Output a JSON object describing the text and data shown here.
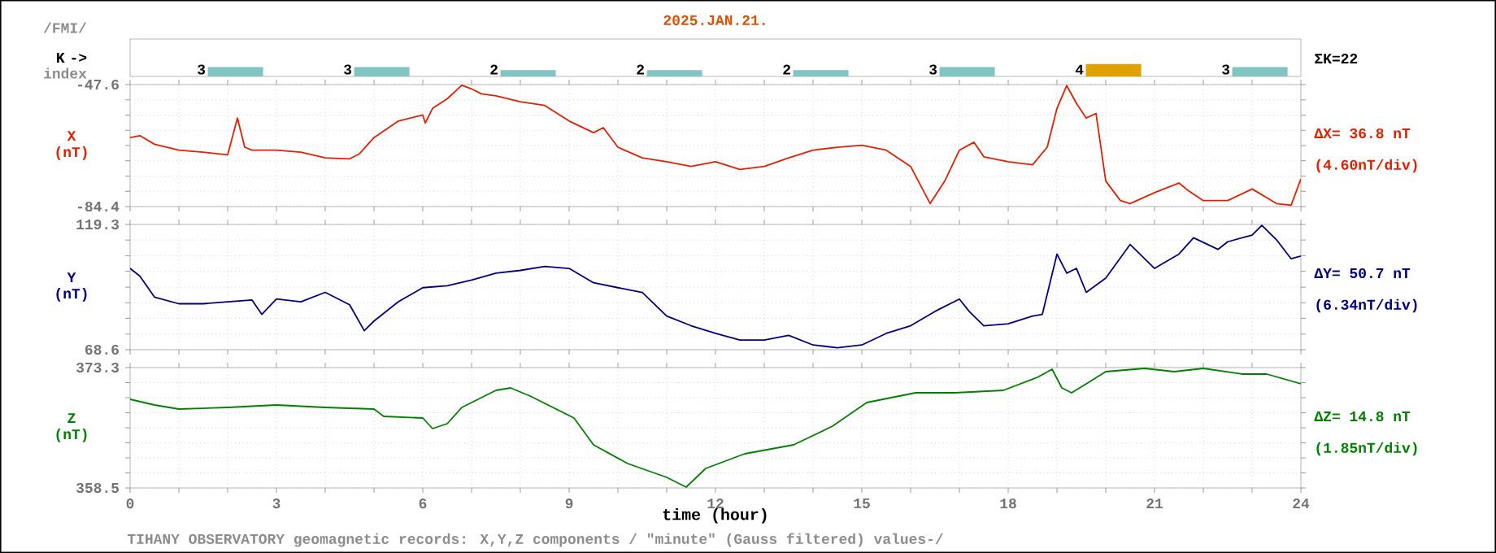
{
  "chart_data": [
    {
      "type": "bar",
      "title": "2025.JAN.21.",
      "ylabel": "K ->",
      "categories": [
        null,
        null,
        null,
        null,
        null,
        null,
        null,
        null
      ],
      "values": [
        3,
        3,
        2,
        2,
        2,
        3,
        4,
        3
      ],
      "colors": [
        "#80c4c4",
        "#80c4c4",
        "#80c4c4",
        "#80c4c4",
        "#80c4c4",
        "#80c4c4",
        "#e0a000",
        "#80c4c4"
      ],
      "data_labels": true,
      "annotations": [
        "/FMI/",
        "index",
        "ΣK=22"
      ]
    },
    {
      "type": "line",
      "ylabel": "X (nT)",
      "xlim": [
        0,
        24
      ],
      "ylim": [
        -84.4,
        -47.6
      ],
      "xticks": [
        0,
        {
          "value": 1,
          "label": null
        },
        {
          "value": 2,
          "label": null
        },
        3,
        {
          "value": 4,
          "label": null
        },
        {
          "value": 5,
          "label": null
        },
        6,
        {
          "value": 7,
          "label": null
        },
        {
          "value": 8,
          "label": null
        },
        9,
        {
          "value": 10,
          "label": null
        },
        {
          "value": 11,
          "label": null
        },
        12,
        {
          "value": 13,
          "label": null
        },
        {
          "value": 14,
          "label": null
        },
        15,
        {
          "value": 16,
          "label": null
        },
        {
          "value": 17,
          "label": null
        },
        18,
        {
          "value": 19,
          "label": null
        },
        {
          "value": 20,
          "label": null
        },
        21,
        {
          "value": 22,
          "label": null
        },
        {
          "value": 23,
          "label": null
        },
        24
      ],
      "yticks": [
        -84.4,
        {
          "value": -79.8,
          "label": null
        },
        {
          "value": -75.2,
          "label": null
        },
        {
          "value": -70.6,
          "label": null
        },
        {
          "value": -66.0,
          "label": null
        },
        {
          "value": -61.4,
          "label": null
        },
        {
          "value": -56.8,
          "label": null
        },
        {
          "value": -52.2,
          "label": null
        },
        -47.6
      ],
      "tick_labels": "y",
      "grid": true,
      "x": [
        0,
        0.2,
        0.5,
        1,
        1.5,
        2,
        2.2,
        2.35,
        2.5,
        3,
        3.5,
        4,
        4.5,
        4.7,
        5,
        5.5,
        6,
        6.05,
        6.2,
        6.5,
        6.8,
        7,
        7.2,
        7.5,
        8,
        8.5,
        9,
        9.5,
        9.7,
        10,
        10.5,
        11,
        11.5,
        12,
        12.5,
        13,
        13.5,
        14,
        14.5,
        15,
        15.5,
        16,
        16.4,
        16.7,
        17,
        17.3,
        17.5,
        18,
        18.5,
        18.8,
        19,
        19.2,
        19.4,
        19.6,
        19.8,
        20,
        20.3,
        20.5,
        21,
        21.5,
        21.7,
        22,
        22.5,
        23,
        23.5,
        23.8,
        24
      ],
      "series": [
        {
          "color": "#e02000",
          "values": [
            -63.6,
            -63.0,
            -65.6,
            -67.4,
            -68.0,
            -68.8,
            -57.7,
            -66.5,
            -67.4,
            -67.4,
            -68.0,
            -69.7,
            -70.0,
            -68.5,
            -63.6,
            -58.6,
            -56.8,
            -59.2,
            -54.8,
            -51.9,
            -47.8,
            -48.9,
            -50.4,
            -51.0,
            -52.8,
            -53.9,
            -58.6,
            -62.1,
            -60.6,
            -66.5,
            -69.7,
            -70.9,
            -72.3,
            -70.9,
            -73.2,
            -72.3,
            -69.7,
            -67.4,
            -66.5,
            -65.9,
            -67.4,
            -72.3,
            -83.5,
            -76.7,
            -67.4,
            -65.0,
            -69.4,
            -70.9,
            -71.8,
            -66.5,
            -54.8,
            -47.9,
            -53.3,
            -57.7,
            -56.3,
            -76.7,
            -82.6,
            -83.5,
            -80.2,
            -77.3,
            -79.7,
            -82.6,
            -82.6,
            -79.1,
            -83.5,
            -84.0,
            -76.1
          ]
        }
      ],
      "annotations": [
        "ΔX= 36.8 nT",
        "(4.60nT/div)"
      ]
    },
    {
      "type": "line",
      "ylabel": "Y (nT)",
      "xlim": [
        0,
        24
      ],
      "ylim": [
        68.6,
        119.3
      ],
      "xticks": [
        0,
        {
          "value": 1,
          "label": null
        },
        {
          "value": 2,
          "label": null
        },
        3,
        {
          "value": 4,
          "label": null
        },
        {
          "value": 5,
          "label": null
        },
        6,
        {
          "value": 7,
          "label": null
        },
        {
          "value": 8,
          "label": null
        },
        9,
        {
          "value": 10,
          "label": null
        },
        {
          "value": 11,
          "label": null
        },
        12,
        {
          "value": 13,
          "label": null
        },
        {
          "value": 14,
          "label": null
        },
        15,
        {
          "value": 16,
          "label": null
        },
        {
          "value": 17,
          "label": null
        },
        18,
        {
          "value": 19,
          "label": null
        },
        {
          "value": 20,
          "label": null
        },
        21,
        {
          "value": 22,
          "label": null
        },
        {
          "value": 23,
          "label": null
        },
        24
      ],
      "yticks": [
        68.6,
        {
          "value": 74.9,
          "label": null
        },
        {
          "value": 81.3,
          "label": null
        },
        {
          "value": 87.6,
          "label": null
        },
        {
          "value": 93.9,
          "label": null
        },
        {
          "value": 100.3,
          "label": null
        },
        {
          "value": 106.6,
          "label": null
        },
        {
          "value": 113.0,
          "label": null
        },
        119.3
      ],
      "tick_labels": "y",
      "grid": true,
      "x": [
        0,
        0.2,
        0.5,
        1,
        1.5,
        2,
        2.5,
        2.7,
        3,
        3.5,
        4,
        4.5,
        4.8,
        5,
        5.5,
        6,
        6.5,
        7,
        7.5,
        8,
        8.5,
        9,
        9.5,
        10,
        10.5,
        11,
        11.5,
        12,
        12.5,
        13,
        13.5,
        14,
        14.5,
        15,
        15.5,
        16,
        16.5,
        17,
        17.2,
        17.5,
        18,
        18.5,
        18.7,
        19,
        19.2,
        19.4,
        19.6,
        20,
        20.5,
        21,
        21.5,
        21.8,
        22.3,
        22.5,
        23,
        23.2,
        23.5,
        23.8,
        24
      ],
      "series": [
        {
          "color": "#000080",
          "values": [
            101.5,
            98.4,
            89.9,
            87.2,
            87.2,
            88.0,
            88.7,
            82.9,
            89.1,
            88.0,
            91.8,
            86.8,
            76.3,
            80.2,
            88.0,
            93.7,
            94.5,
            96.8,
            99.6,
            100.7,
            102.3,
            101.5,
            95.7,
            93.7,
            91.8,
            82.2,
            78.3,
            75.2,
            72.5,
            72.5,
            74.4,
            70.5,
            69.4,
            70.5,
            75.2,
            78.3,
            84.1,
            89.1,
            84.1,
            78.3,
            79.1,
            82.2,
            82.9,
            107.3,
            99.6,
            101.5,
            91.8,
            97.6,
            111.2,
            101.5,
            107.3,
            113.9,
            109.2,
            112.3,
            115.0,
            118.9,
            113.1,
            105.4,
            106.5
          ]
        }
      ],
      "annotations": [
        "ΔY= 50.7 nT",
        "(6.34nT/div)"
      ]
    },
    {
      "type": "line",
      "ylabel": "Z (nT)",
      "xlabel": "time (hour)",
      "xlim": [
        0,
        24
      ],
      "ylim": [
        358.5,
        373.3
      ],
      "xticks": [
        0,
        {
          "value": 1,
          "label": null
        },
        {
          "value": 2,
          "label": null
        },
        3,
        {
          "value": 4,
          "label": null
        },
        {
          "value": 5,
          "label": null
        },
        6,
        {
          "value": 7,
          "label": null
        },
        {
          "value": 8,
          "label": null
        },
        9,
        {
          "value": 10,
          "label": null
        },
        {
          "value": 11,
          "label": null
        },
        12,
        {
          "value": 13,
          "label": null
        },
        {
          "value": 14,
          "label": null
        },
        15,
        {
          "value": 16,
          "label": null
        },
        {
          "value": 17,
          "label": null
        },
        18,
        {
          "value": 19,
          "label": null
        },
        {
          "value": 20,
          "label": null
        },
        21,
        {
          "value": 22,
          "label": null
        },
        {
          "value": 23,
          "label": null
        },
        24
      ],
      "yticks": [
        358.5,
        {
          "value": 360.35,
          "label": null
        },
        {
          "value": 362.2,
          "label": null
        },
        {
          "value": 364.05,
          "label": null
        },
        {
          "value": 365.9,
          "label": null
        },
        {
          "value": 367.75,
          "label": null
        },
        {
          "value": 369.6,
          "label": null
        },
        {
          "value": 371.45,
          "label": null
        },
        373.3
      ],
      "grid": true,
      "x": [
        0,
        0.5,
        1,
        2,
        3,
        4,
        5,
        5.2,
        6,
        6.2,
        6.5,
        6.8,
        7.5,
        7.8,
        8.2,
        9.1,
        9.5,
        10.2,
        11,
        11.4,
        11.8,
        12.6,
        13.6,
        14.4,
        15.1,
        16.1,
        16.9,
        17.9,
        18.6,
        18.9,
        19.1,
        19.3,
        19.6,
        20,
        20.8,
        21.4,
        22,
        22.8,
        23.3,
        24
      ],
      "series": [
        {
          "color": "#008000",
          "values": [
            369.4,
            368.7,
            368.2,
            368.4,
            368.7,
            368.4,
            368.2,
            367.3,
            367.1,
            365.8,
            366.4,
            368.4,
            370.5,
            370.8,
            369.8,
            367.1,
            363.8,
            361.5,
            359.8,
            358.6,
            360.9,
            362.7,
            363.8,
            366.1,
            369.0,
            370.2,
            370.2,
            370.5,
            372.1,
            373.1,
            370.8,
            370.2,
            371.3,
            372.8,
            373.2,
            372.8,
            373.2,
            372.5,
            372.5,
            371.3
          ]
        }
      ],
      "annotations": [
        "ΔZ= 14.8 nT",
        "(1.85nT/div)",
        "TIHANY OBSERVATORY   geomagnetic records:  X,Y,Z  components    / \"minute\" (Gauss filtered) values-/"
      ]
    }
  ]
}
